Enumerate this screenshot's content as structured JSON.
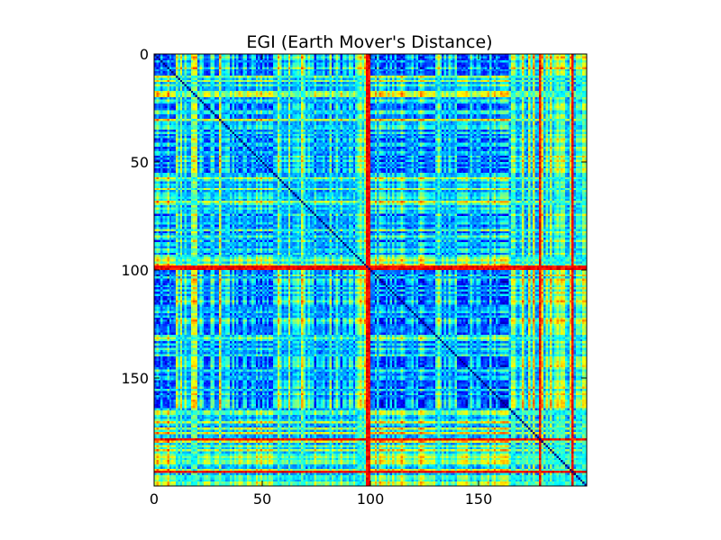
{
  "chart_data": {
    "type": "heatmap",
    "title": "EGI (Earth Mover's Distance)",
    "xlabel": "",
    "ylabel": "",
    "matrix_size": 200,
    "xlim": [
      0,
      200
    ],
    "ylim": [
      200,
      0
    ],
    "xticks": [
      "0",
      "50",
      "100",
      "150"
    ],
    "yticks": [
      "0",
      "50",
      "100",
      "150"
    ],
    "xtick_values": [
      0,
      50,
      100,
      150
    ],
    "ytick_values": [
      0,
      50,
      100,
      150
    ],
    "colormap": "jet",
    "value_range": [
      0,
      1
    ],
    "grid": false,
    "legend": "none",
    "description": "Symmetric pairwise distance matrix; diagonal is zero; mostly low (blue) values with bands of higher (cyan/yellow) values; a few red lines near indices 98 and 100",
    "row_profile": {
      "note": "Approximate per-index profile used to reconstruct the symmetric banded pattern",
      "segments": [
        {
          "from": 0,
          "to": 10,
          "level": 0.15
        },
        {
          "from": 10,
          "to": 22,
          "level": 0.55
        },
        {
          "from": 22,
          "to": 30,
          "level": 0.35
        },
        {
          "from": 30,
          "to": 35,
          "level": 0.6
        },
        {
          "from": 35,
          "to": 55,
          "level": 0.3
        },
        {
          "from": 55,
          "to": 58,
          "level": 0.5
        },
        {
          "from": 58,
          "to": 70,
          "level": 0.6
        },
        {
          "from": 70,
          "to": 95,
          "level": 0.4
        },
        {
          "from": 95,
          "to": 100,
          "level": 0.7
        },
        {
          "from": 100,
          "to": 130,
          "level": 0.25
        },
        {
          "from": 130,
          "to": 140,
          "level": 0.45
        },
        {
          "from": 140,
          "to": 165,
          "level": 0.3
        },
        {
          "from": 165,
          "to": 182,
          "level": 0.55
        },
        {
          "from": 182,
          "to": 200,
          "level": 0.6
        }
      ],
      "red_lines": [
        98,
        99,
        178,
        193
      ]
    }
  }
}
